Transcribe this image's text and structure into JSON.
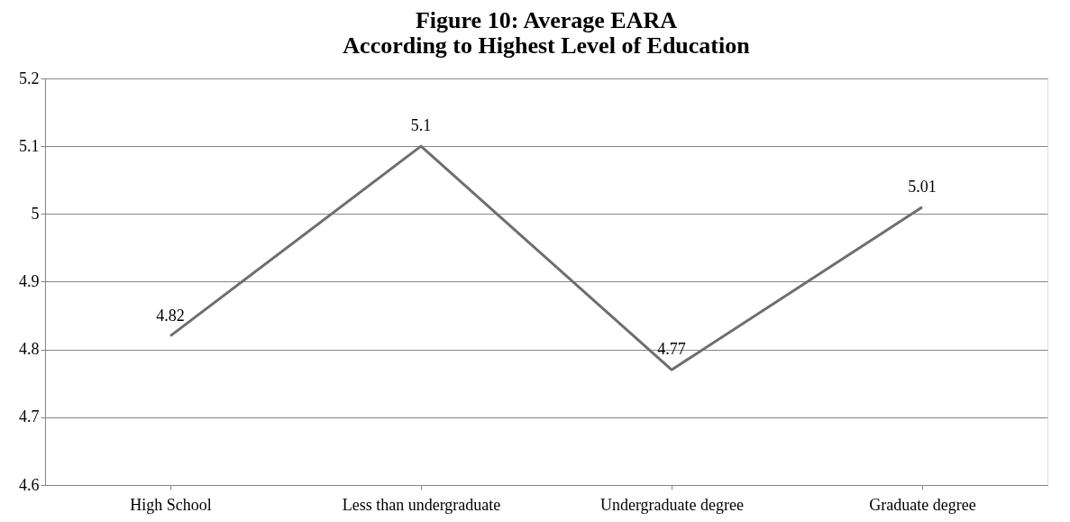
{
  "chart_data": {
    "type": "line",
    "title": "Figure 10: Average EARA\nAccording to Highest Level of Education",
    "categories": [
      "High School",
      "Less than undergraduate",
      "Undergraduate degree",
      "Graduate degree"
    ],
    "series": [
      {
        "color": "#6e6e6e",
        "values": [
          4.82,
          5.1,
          4.77,
          5.01
        ]
      }
    ],
    "ylim": [
      4.6,
      5.2
    ],
    "yticks": [
      4.6,
      4.7,
      4.8,
      4.9,
      5,
      5.1,
      5.2
    ],
    "grid": "y",
    "data_labels": true,
    "marker": "none",
    "line_style": "solid"
  }
}
